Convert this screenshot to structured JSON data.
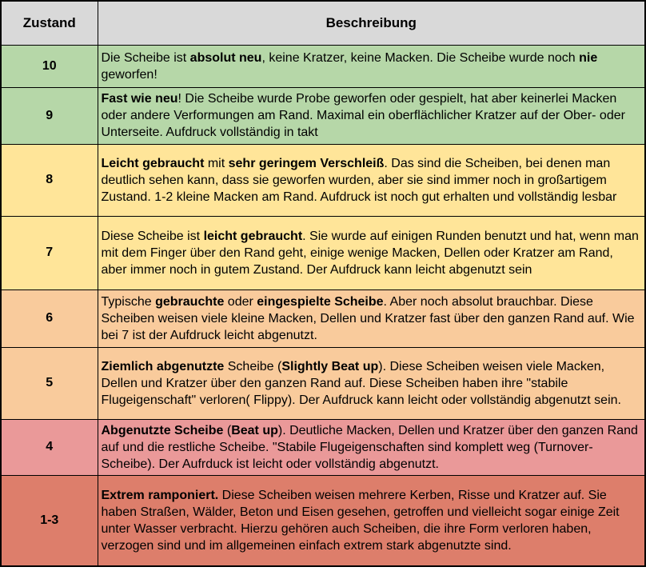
{
  "table": {
    "headers": {
      "zustand": "Zustand",
      "beschreibung": "Beschreibung"
    },
    "colors": {
      "header_bg": "#d9d9d9",
      "border": "#000000",
      "text": "#000000",
      "green": "#b6d7a8",
      "yellow": "#ffe599",
      "orange": "#f9cb9c",
      "light_red": "#ea9999",
      "dark_red": "#dd7e6b"
    },
    "rows": [
      {
        "grade": "10",
        "color": "#b6d7a8",
        "description": [
          {
            "text": "Die Scheibe ist "
          },
          {
            "text": "absolut neu",
            "bold": true
          },
          {
            "text": ", keine Kratzer, keine Macken. Die Scheibe wurde noch "
          },
          {
            "text": "nie",
            "bold": true
          },
          {
            "text": " geworfen!"
          }
        ]
      },
      {
        "grade": "9",
        "color": "#b6d7a8",
        "description": [
          {
            "text": "Fast wie neu",
            "bold": true
          },
          {
            "text": "! Die Scheibe wurde Probe geworfen oder gespielt, hat aber keinerlei Macken oder andere Verformungen am Rand. Maximal ein oberflächlicher Kratzer auf der Ober- oder Unterseite. Aufdruck vollständig in takt"
          }
        ]
      },
      {
        "grade": "8",
        "color": "#ffe599",
        "description": [
          {
            "text": "Leicht gebraucht",
            "bold": true
          },
          {
            "text": " mit "
          },
          {
            "text": "sehr geringem Verschleiß",
            "bold": true
          },
          {
            "text": ". Das sind die Scheiben, bei denen man deutlich sehen kann, dass sie geworfen wurden, aber sie sind immer noch in großartigem Zustand. 1-2 kleine Macken am Rand. Aufdruck ist noch gut erhalten und vollständig lesbar"
          }
        ]
      },
      {
        "grade": "7",
        "color": "#ffe599",
        "description": [
          {
            "text": "Diese Scheibe ist "
          },
          {
            "text": "leicht gebraucht",
            "bold": true
          },
          {
            "text": ". Sie wurde auf einigen Runden benutzt und hat, wenn man mit dem Finger über den Rand geht, einige wenige Macken, Dellen oder Kratzer am Rand, aber immer noch in gutem Zustand. Der Aufdruck kann leicht abgenutzt sein"
          }
        ]
      },
      {
        "grade": "6",
        "color": "#f9cb9c",
        "description": [
          {
            "text": "Typische "
          },
          {
            "text": "gebrauchte",
            "bold": true
          },
          {
            "text": " oder "
          },
          {
            "text": "eingespielte Scheibe",
            "bold": true
          },
          {
            "text": ". Aber noch absolut brauchbar. Diese Scheiben weisen viele kleine Macken, Dellen und Kratzer fast über den ganzen Rand auf. Wie bei 7 ist der Aufdruck leicht abgenutzt."
          }
        ]
      },
      {
        "grade": "5",
        "color": "#f9cb9c",
        "description": [
          {
            "text": "Ziemlich abgenutzte",
            "bold": true
          },
          {
            "text": " Scheibe ("
          },
          {
            "text": "Slightly Beat up",
            "bold": true
          },
          {
            "text": "). Diese Scheiben weisen viele Macken, Dellen und Kratzer über den ganzen Rand auf. Diese Scheiben haben ihre \"stabile Flugeigenschaft\" verloren( Flippy). Der Aufdruck kann leicht oder vollständig abgenutzt sein."
          }
        ]
      },
      {
        "grade": "4",
        "color": "#ea9999",
        "description": [
          {
            "text": "Abgenutzte Scheibe",
            "bold": true
          },
          {
            "text": " ("
          },
          {
            "text": "Beat up",
            "bold": true
          },
          {
            "text": "). Deutliche  Macken, Dellen und Kratzer über den ganzen Rand auf und die restliche Scheibe. \"Stabile Flugeigenschaften sind komplett weg (Turnover-Scheibe). Der Aufrduck ist leicht oder vollständig abgenutzt."
          }
        ]
      },
      {
        "grade": "1-3",
        "color": "#dd7e6b",
        "description": [
          {
            "text": "Extrem ramponiert.",
            "bold": true
          },
          {
            "text": " Diese Scheiben weisen mehrere Kerben, Risse und Kratzer auf. Sie haben Straßen, Wälder, Beton und Eisen gesehen, getroffen und vielleicht sogar einige Zeit unter Wasser verbracht. Hierzu gehören auch Scheiben, die ihre Form verloren haben, verzogen sind und im allgemeinen einfach extrem stark abgenutzte sind."
          }
        ]
      }
    ]
  }
}
